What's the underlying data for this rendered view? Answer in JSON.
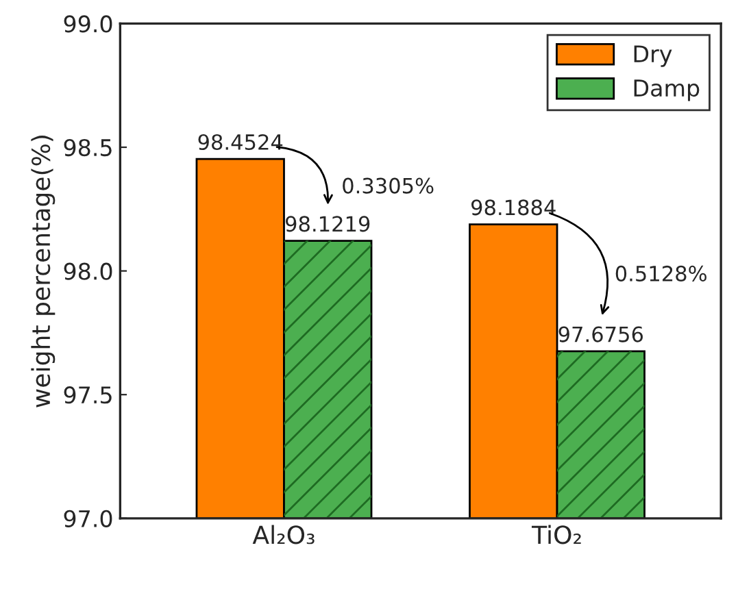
{
  "chart_data": {
    "type": "bar",
    "ylabel": "weight percentage(%)",
    "categories": [
      "Al₂O₃",
      "TiO₂"
    ],
    "series": [
      {
        "name": "Dry",
        "color": "#ff8000",
        "values": [
          98.4524,
          98.1884
        ]
      },
      {
        "name": "Damp",
        "color": "#4caf50",
        "values": [
          98.1219,
          97.6756
        ]
      }
    ],
    "ylim": [
      97.0,
      99.0
    ],
    "yticks": [
      {
        "value": 97.0,
        "label": "97.0"
      },
      {
        "value": 97.5,
        "label": "97.5"
      },
      {
        "value": 98.0,
        "label": "98.0"
      },
      {
        "value": 98.5,
        "label": "98.5"
      },
      {
        "value": 99.0,
        "label": "99.0"
      }
    ],
    "data_labels": true,
    "legend": "top right",
    "grid": false,
    "annotations": [
      "0.3305%",
      "0.5128%"
    ]
  }
}
